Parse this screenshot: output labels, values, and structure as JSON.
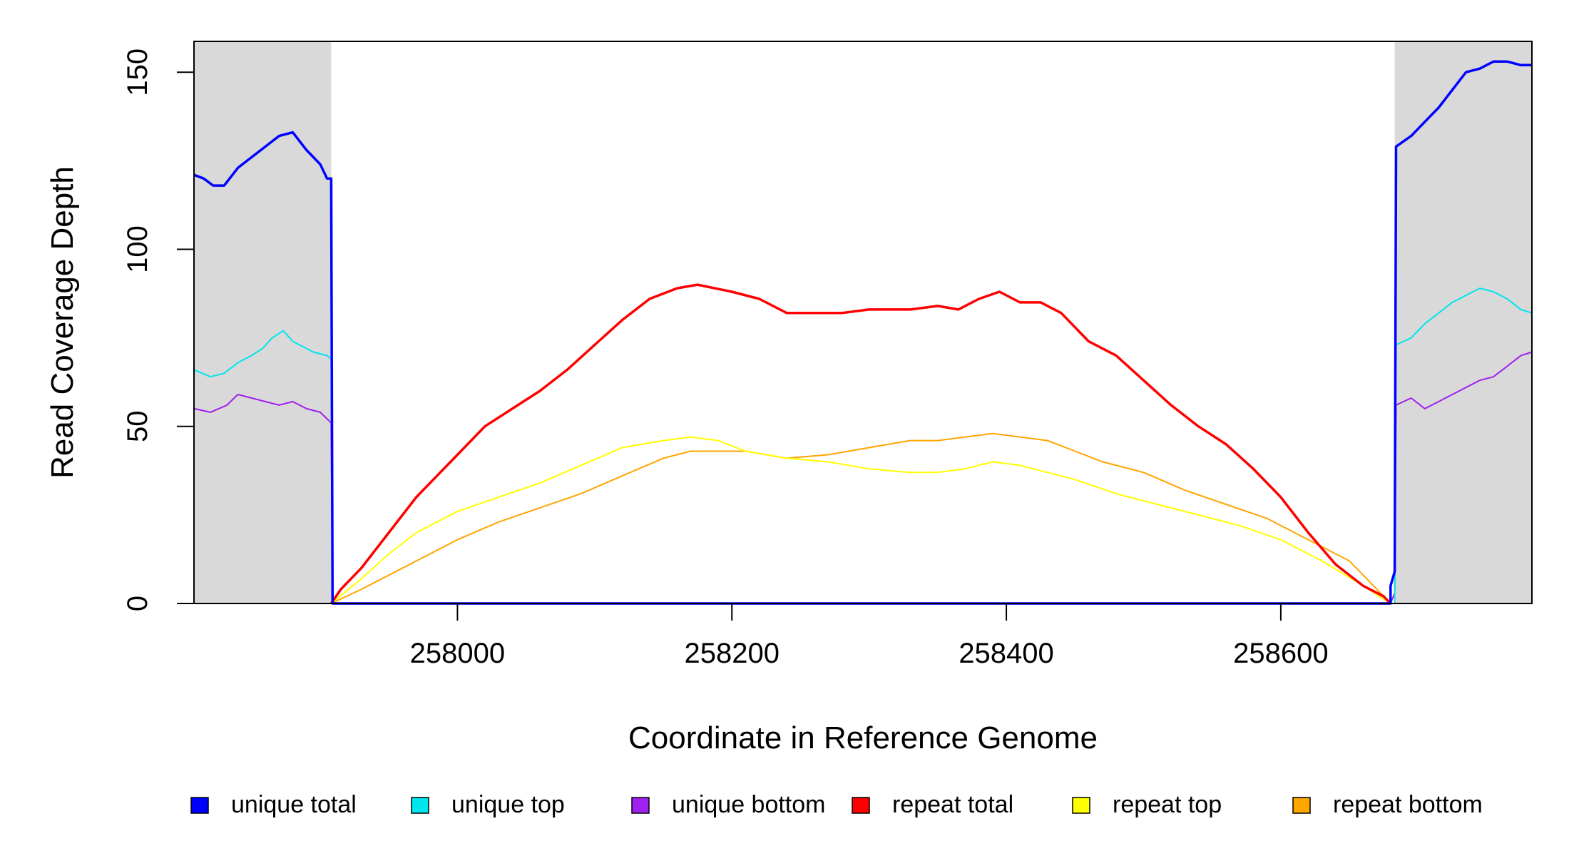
{
  "chart_data": {
    "type": "line",
    "title": "",
    "xlabel": "Coordinate in Reference Genome",
    "ylabel": "Read Coverage Depth",
    "xlim": [
      257808,
      258783
    ],
    "ylim": [
      0,
      160
    ],
    "x_ticks": [
      258000,
      258200,
      258400,
      258600
    ],
    "y_ticks": [
      0,
      50,
      100,
      150
    ],
    "grid": false,
    "legend_position": "bottom",
    "shaded_regions": [
      {
        "x": [
          257808,
          257908
        ],
        "color": "#d9d9d9"
      },
      {
        "x": [
          258683,
          258783
        ],
        "color": "#d9d9d9"
      }
    ],
    "series": [
      {
        "name": "unique total",
        "color": "#0000ff",
        "points": [
          [
            257808,
            121
          ],
          [
            257815,
            120
          ],
          [
            257822,
            118
          ],
          [
            257830,
            118
          ],
          [
            257840,
            123
          ],
          [
            257850,
            126
          ],
          [
            257860,
            129
          ],
          [
            257870,
            132
          ],
          [
            257880,
            133
          ],
          [
            257890,
            128
          ],
          [
            257900,
            124
          ],
          [
            257905,
            120
          ],
          [
            257908,
            120
          ],
          [
            257909,
            0
          ],
          [
            258145,
            0
          ],
          [
            258680,
            0
          ],
          [
            258680,
            5
          ],
          [
            258683,
            9
          ],
          [
            258684,
            129
          ],
          [
            258695,
            132
          ],
          [
            258705,
            136
          ],
          [
            258715,
            140
          ],
          [
            258725,
            145
          ],
          [
            258735,
            150
          ],
          [
            258745,
            151
          ],
          [
            258755,
            153
          ],
          [
            258765,
            153
          ],
          [
            258775,
            152
          ],
          [
            258783,
            152
          ]
        ]
      },
      {
        "name": "unique top",
        "color": "#00e5ee",
        "points": [
          [
            257808,
            66
          ],
          [
            257820,
            64
          ],
          [
            257830,
            65
          ],
          [
            257840,
            68
          ],
          [
            257850,
            70
          ],
          [
            257858,
            72
          ],
          [
            257865,
            75
          ],
          [
            257873,
            77
          ],
          [
            257880,
            74
          ],
          [
            257895,
            71
          ],
          [
            257905,
            70
          ],
          [
            257908,
            69
          ],
          [
            257909,
            0
          ],
          [
            258683,
            0
          ],
          [
            258684,
            73
          ],
          [
            258695,
            75
          ],
          [
            258705,
            79
          ],
          [
            258715,
            82
          ],
          [
            258725,
            85
          ],
          [
            258735,
            87
          ],
          [
            258745,
            89
          ],
          [
            258755,
            88
          ],
          [
            258765,
            86
          ],
          [
            258775,
            83
          ],
          [
            258783,
            82
          ]
        ]
      },
      {
        "name": "unique bottom",
        "color": "#a020f0",
        "points": [
          [
            257808,
            55
          ],
          [
            257820,
            54
          ],
          [
            257832,
            56
          ],
          [
            257840,
            59
          ],
          [
            257850,
            58
          ],
          [
            257860,
            57
          ],
          [
            257870,
            56
          ],
          [
            257880,
            57
          ],
          [
            257890,
            55
          ],
          [
            257900,
            54
          ],
          [
            257908,
            51
          ],
          [
            257909,
            0
          ],
          [
            258680,
            0
          ],
          [
            258683,
            3
          ],
          [
            258684,
            56
          ],
          [
            258695,
            58
          ],
          [
            258705,
            55
          ],
          [
            258715,
            57
          ],
          [
            258725,
            59
          ],
          [
            258735,
            61
          ],
          [
            258745,
            63
          ],
          [
            258755,
            64
          ],
          [
            258765,
            67
          ],
          [
            258775,
            70
          ],
          [
            258783,
            71
          ]
        ]
      },
      {
        "name": "repeat total",
        "color": "#ff0000",
        "points": [
          [
            257908,
            0
          ],
          [
            257915,
            4
          ],
          [
            257930,
            10
          ],
          [
            257950,
            20
          ],
          [
            257970,
            30
          ],
          [
            257985,
            36
          ],
          [
            258000,
            42
          ],
          [
            258020,
            50
          ],
          [
            258040,
            55
          ],
          [
            258060,
            60
          ],
          [
            258080,
            66
          ],
          [
            258100,
            73
          ],
          [
            258120,
            80
          ],
          [
            258140,
            86
          ],
          [
            258160,
            89
          ],
          [
            258175,
            90
          ],
          [
            258200,
            88
          ],
          [
            258220,
            86
          ],
          [
            258240,
            82
          ],
          [
            258260,
            82
          ],
          [
            258280,
            82
          ],
          [
            258300,
            83
          ],
          [
            258330,
            83
          ],
          [
            258350,
            84
          ],
          [
            258365,
            83
          ],
          [
            258380,
            86
          ],
          [
            258395,
            88
          ],
          [
            258410,
            85
          ],
          [
            258425,
            85
          ],
          [
            258440,
            82
          ],
          [
            258460,
            74
          ],
          [
            258480,
            70
          ],
          [
            258500,
            63
          ],
          [
            258520,
            56
          ],
          [
            258540,
            50
          ],
          [
            258560,
            45
          ],
          [
            258580,
            38
          ],
          [
            258600,
            30
          ],
          [
            258620,
            20
          ],
          [
            258640,
            11
          ],
          [
            258660,
            5
          ],
          [
            258675,
            2
          ],
          [
            258680,
            0
          ]
        ]
      },
      {
        "name": "repeat top",
        "color": "#ffff00",
        "points": [
          [
            257908,
            0
          ],
          [
            257930,
            7
          ],
          [
            257950,
            14
          ],
          [
            257970,
            20
          ],
          [
            258000,
            26
          ],
          [
            258030,
            30
          ],
          [
            258060,
            34
          ],
          [
            258090,
            39
          ],
          [
            258120,
            44
          ],
          [
            258150,
            46
          ],
          [
            258170,
            47
          ],
          [
            258190,
            46
          ],
          [
            258210,
            43
          ],
          [
            258240,
            41
          ],
          [
            258270,
            40
          ],
          [
            258300,
            38
          ],
          [
            258330,
            37
          ],
          [
            258350,
            37
          ],
          [
            258370,
            38
          ],
          [
            258390,
            40
          ],
          [
            258410,
            39
          ],
          [
            258430,
            37
          ],
          [
            258450,
            35
          ],
          [
            258480,
            31
          ],
          [
            258510,
            28
          ],
          [
            258540,
            25
          ],
          [
            258570,
            22
          ],
          [
            258600,
            18
          ],
          [
            258630,
            12
          ],
          [
            258660,
            5
          ],
          [
            258680,
            0
          ]
        ]
      },
      {
        "name": "repeat bottom",
        "color": "#ffa500",
        "points": [
          [
            257908,
            0
          ],
          [
            257930,
            4
          ],
          [
            257950,
            8
          ],
          [
            257980,
            14
          ],
          [
            258000,
            18
          ],
          [
            258030,
            23
          ],
          [
            258060,
            27
          ],
          [
            258090,
            31
          ],
          [
            258120,
            36
          ],
          [
            258150,
            41
          ],
          [
            258170,
            43
          ],
          [
            258190,
            43
          ],
          [
            258210,
            43
          ],
          [
            258240,
            41
          ],
          [
            258270,
            42
          ],
          [
            258300,
            44
          ],
          [
            258330,
            46
          ],
          [
            258350,
            46
          ],
          [
            258370,
            47
          ],
          [
            258390,
            48
          ],
          [
            258410,
            47
          ],
          [
            258430,
            46
          ],
          [
            258450,
            43
          ],
          [
            258470,
            40
          ],
          [
            258500,
            37
          ],
          [
            258530,
            32
          ],
          [
            258560,
            28
          ],
          [
            258590,
            24
          ],
          [
            258620,
            18
          ],
          [
            258650,
            12
          ],
          [
            258670,
            4
          ],
          [
            258680,
            0
          ]
        ]
      }
    ]
  }
}
